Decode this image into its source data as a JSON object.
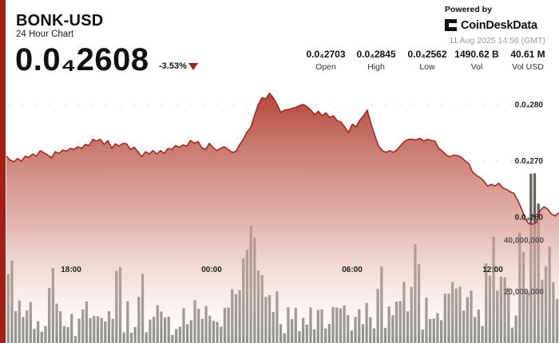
{
  "header": {
    "pair": "BONK-USD",
    "subtitle": "24 Hour Chart",
    "price": "0.0₄2608",
    "change": "-3.53%"
  },
  "brand": {
    "powered_by": "Powered by",
    "name": "CoinDeskData",
    "timestamp": "11 Aug 2025 14:56 (GMT)"
  },
  "stats": [
    {
      "value": "0.0₄2703",
      "label": "Open"
    },
    {
      "value": "0.0₄2845",
      "label": "High"
    },
    {
      "value": "0.0₄2562",
      "label": "Low"
    },
    {
      "value": "1490.62 B",
      "label": "Vol"
    },
    {
      "value": "40.61 M",
      "label": "Vol USD"
    }
  ],
  "colors": {
    "accent": "#a81e14",
    "line": "#a8271c",
    "area_top": "#b4463a",
    "volume_bar": "#5a5c52"
  },
  "chart_data": {
    "type": "area",
    "price_axis": {
      "ticks": [
        "0.0₄280",
        "0.0₄270",
        "0.0₄260"
      ],
      "tick_values": [
        2.8e-05,
        2.7e-05,
        2.6e-05
      ],
      "gridlines": true
    },
    "volume_axis": {
      "ticks": [
        "40,000,000",
        "20,000,000"
      ],
      "tick_values": [
        40000000,
        20000000
      ]
    },
    "time_axis": [
      "18:00",
      "00:00",
      "06:00",
      "12:00"
    ],
    "price_series": [
      2.708e-05,
      2.701e-05,
      2.698e-05,
      2.704e-05,
      2.699e-05,
      2.708e-05,
      2.706e-05,
      2.712e-05,
      2.708e-05,
      2.718e-05,
      2.714e-05,
      2.71e-05,
      2.705e-05,
      2.716e-05,
      2.713e-05,
      2.719e-05,
      2.717e-05,
      2.722e-05,
      2.72e-05,
      2.725e-05,
      2.722e-05,
      2.729e-05,
      2.727e-05,
      2.738e-05,
      2.735e-05,
      2.738e-05,
      2.729e-05,
      2.736e-05,
      2.722e-05,
      2.73e-05,
      2.726e-05,
      2.731e-05,
      2.73e-05,
      2.72e-05,
      2.724e-05,
      2.716e-05,
      2.707e-05,
      2.716e-05,
      2.712e-05,
      2.718e-05,
      2.712e-05,
      2.718e-05,
      2.713e-05,
      2.722e-05,
      2.72e-05,
      2.727e-05,
      2.724e-05,
      2.728e-05,
      2.726e-05,
      2.736e-05,
      2.731e-05,
      2.734e-05,
      2.723e-05,
      2.72e-05,
      2.731e-05,
      2.723e-05,
      2.718e-05,
      2.722e-05,
      2.725e-05,
      2.72e-05,
      2.715e-05,
      2.716e-05,
      2.728e-05,
      2.738e-05,
      2.751e-05,
      2.759e-05,
      2.78e-05,
      2.8e-05,
      2.812e-05,
      2.81e-05,
      2.82e-05,
      2.812e-05,
      2.8e-05,
      2.786e-05,
      2.79e-05,
      2.791e-05,
      2.793e-05,
      2.795e-05,
      2.798e-05,
      2.8e-05,
      2.796e-05,
      2.79e-05,
      2.782e-05,
      2.788e-05,
      2.78e-05,
      2.785e-05,
      2.777e-05,
      2.78e-05,
      2.771e-05,
      2.769e-05,
      2.76e-05,
      2.75e-05,
      2.765e-05,
      2.76e-05,
      2.772e-05,
      2.78e-05,
      2.79e-05,
      2.765e-05,
      2.745e-05,
      2.726e-05,
      2.718e-05,
      2.715e-05,
      2.718e-05,
      2.715e-05,
      2.72e-05,
      2.728e-05,
      2.735e-05,
      2.738e-05,
      2.738e-05,
      2.737e-05,
      2.74e-05,
      2.735e-05,
      2.738e-05,
      2.736e-05,
      2.735e-05,
      2.722e-05,
      2.717e-05,
      2.71e-05,
      2.707e-05,
      2.71e-05,
      2.709e-05,
      2.706e-05,
      2.7e-05,
      2.695e-05,
      2.68e-05,
      2.674e-05,
      2.67e-05,
      2.664e-05,
      2.655e-05,
      2.658e-05,
      2.655e-05,
      2.66e-05,
      2.652e-05,
      2.649e-05,
      2.645e-05,
      2.642e-05,
      2.63e-05,
      2.615e-05,
      2.597e-05,
      2.588e-05,
      2.587e-05,
      2.59e-05,
      2.612e-05,
      2.618e-05,
      2.614e-05,
      2.605e-05,
      2.602e-05,
      2.608e-05
    ],
    "volume_series": [
      26800000,
      32000000,
      12400000,
      16500000,
      10100000,
      12700000,
      15900000,
      5500000,
      8500000,
      4400000,
      6600000,
      21400000,
      29100000,
      15300000,
      12300000,
      6600000,
      6200000,
      11300000,
      2700000,
      9400000,
      13100000,
      16100000,
      9600000,
      10500000,
      10400000,
      9700000,
      8400000,
      12400000,
      9400000,
      28100000,
      29400000,
      4200000,
      16200000,
      4000000,
      6200000,
      17900000,
      26900000,
      4200000,
      9100000,
      10200000,
      14700000,
      12200000,
      10000000,
      10300000,
      3200000,
      5400000,
      6300000,
      13500000,
      7300000,
      8900000,
      16600000,
      13300000,
      9400000,
      14400000,
      10600000,
      8600000,
      8200000,
      6400000,
      13600000,
      13800000,
      20900000,
      19000000,
      20600000,
      32900000,
      36300000,
      45500000,
      41000000,
      28200000,
      26400000,
      17900000,
      18600000,
      12100000,
      20100000,
      7300000,
      3800000,
      13900000,
      9300000,
      13700000,
      4600000,
      9800000,
      7200000,
      13800000,
      5300000,
      12800000,
      13000000,
      5700000,
      7400000,
      14000000,
      13800000,
      13500000,
      14600000,
      10900000,
      4900000,
      10200000,
      13100000,
      7300000,
      15600000,
      10000000,
      5700000,
      21000000,
      29800000,
      5900000,
      14200000,
      10800000,
      16100000,
      16300000,
      23700000,
      12300000,
      21800000,
      38400000,
      30700000,
      5300000,
      17600000,
      9300000,
      9500000,
      11600000,
      8900000,
      19200000,
      19200000,
      23800000,
      21200000,
      21900000,
      12600000,
      17800000,
      20400000,
      10100000,
      13000000,
      6600000,
      31000000,
      26200000,
      41400000,
      20400000,
      25800000,
      25500000,
      21500000,
      6000000,
      10700000,
      42900000,
      35400000,
      20400000,
      65800000,
      66000000,
      54200000,
      24600000,
      29800000,
      37500000,
      23700000,
      17100000
    ]
  }
}
